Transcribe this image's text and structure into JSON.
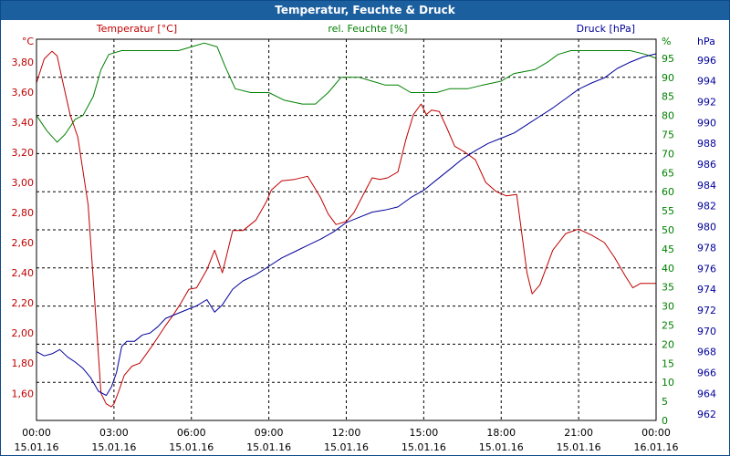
{
  "window": {
    "title": "Temperatur, Feuchte & Druck"
  },
  "chart_data": {
    "type": "line",
    "title": "Temperatur, Feuchte & Druck",
    "grid": true,
    "colors": {
      "temperature": "#c00000",
      "humidity": "#008000",
      "pressure": "#00009a",
      "grid": "#000000",
      "title_bg": "#1c5f9f"
    },
    "x_axis": {
      "range_hours": [
        0,
        24
      ],
      "ticks": [
        {
          "h": 0,
          "time": "00:00",
          "date": "15.01.16"
        },
        {
          "h": 3,
          "time": "03:00",
          "date": "15.01.16"
        },
        {
          "h": 6,
          "time": "06:00",
          "date": "15.01.16"
        },
        {
          "h": 9,
          "time": "09:00",
          "date": "15.01.16"
        },
        {
          "h": 12,
          "time": "12:00",
          "date": "15.01.16"
        },
        {
          "h": 15,
          "time": "15:00",
          "date": "15.01.16"
        },
        {
          "h": 18,
          "time": "18:00",
          "date": "15.01.16"
        },
        {
          "h": 21,
          "time": "21:00",
          "date": "15.01.16"
        },
        {
          "h": 24,
          "time": "00:00",
          "date": "16.01.16"
        }
      ]
    },
    "axes": {
      "temperature": {
        "label": "Temperatur [°C]",
        "unit": "°C",
        "range": [
          1.42,
          3.95
        ],
        "ticks": [
          1.6,
          1.8,
          2.0,
          2.2,
          2.4,
          2.6,
          2.8,
          3.0,
          3.2,
          3.4,
          3.6,
          3.8
        ],
        "tick_labels": [
          "1,60",
          "1,80",
          "2,00",
          "2,20",
          "2,40",
          "2,60",
          "2,80",
          "3,00",
          "3,20",
          "3,40",
          "3,60",
          "3,80"
        ]
      },
      "humidity": {
        "label": "rel. Feuchte [%]",
        "unit": "%",
        "range": [
          0,
          100
        ],
        "ticks": [
          0,
          5,
          10,
          15,
          20,
          25,
          30,
          35,
          40,
          45,
          50,
          55,
          60,
          65,
          70,
          75,
          80,
          85,
          90,
          95
        ],
        "tick_labels": [
          "0",
          "5",
          "10",
          "15",
          "20",
          "25",
          "30",
          "35",
          "40",
          "45",
          "50",
          "55",
          "60",
          "65",
          "70",
          "75",
          "80",
          "85",
          "90",
          "95"
        ]
      },
      "pressure": {
        "label": "Druck [hPa]",
        "unit": "hPa",
        "range": [
          961.4,
          998.0
        ],
        "ticks": [
          962,
          964,
          966,
          968,
          970,
          972,
          974,
          976,
          978,
          980,
          982,
          984,
          986,
          988,
          990,
          992,
          994,
          996
        ],
        "tick_labels": [
          "962",
          "964",
          "966",
          "968",
          "970",
          "972",
          "974",
          "976",
          "978",
          "980",
          "982",
          "984",
          "986",
          "988",
          "990",
          "992",
          "994",
          "996"
        ]
      }
    },
    "series": [
      {
        "name": "Temperatur [°C]",
        "axis": "temperature",
        "x": [
          0,
          0.3,
          0.6,
          0.8,
          1.0,
          1.3,
          1.6,
          2.0,
          2.3,
          2.5,
          2.7,
          2.9,
          3.0,
          3.2,
          3.4,
          3.7,
          4.0,
          4.5,
          5.0,
          5.3,
          5.6,
          5.9,
          6.2,
          6.6,
          6.9,
          7.2,
          7.6,
          8.0,
          8.5,
          8.9,
          9.1,
          9.5,
          10.0,
          10.5,
          11.0,
          11.3,
          11.6,
          12.0,
          12.3,
          12.6,
          13.0,
          13.3,
          13.6,
          14.0,
          14.3,
          14.6,
          14.9,
          15.1,
          15.3,
          15.6,
          15.9,
          16.2,
          16.6,
          17.0,
          17.4,
          17.8,
          18.2,
          18.6,
          19.0,
          19.2,
          19.5,
          20.0,
          20.5,
          21.0,
          21.5,
          22.0,
          22.4,
          22.8,
          23.1,
          23.4,
          23.7,
          24.0
        ],
        "values": [
          3.66,
          3.82,
          3.87,
          3.84,
          3.68,
          3.45,
          3.3,
          2.85,
          2.1,
          1.6,
          1.53,
          1.51,
          1.53,
          1.62,
          1.72,
          1.78,
          1.8,
          1.92,
          2.05,
          2.12,
          2.2,
          2.29,
          2.3,
          2.42,
          2.55,
          2.4,
          2.68,
          2.68,
          2.75,
          2.87,
          2.95,
          3.01,
          3.02,
          3.04,
          2.9,
          2.79,
          2.72,
          2.74,
          2.8,
          2.9,
          3.03,
          3.02,
          3.03,
          3.07,
          3.28,
          3.45,
          3.52,
          3.45,
          3.48,
          3.47,
          3.36,
          3.24,
          3.2,
          3.15,
          3.0,
          2.94,
          2.91,
          2.92,
          2.4,
          2.26,
          2.32,
          2.55,
          2.66,
          2.69,
          2.65,
          2.6,
          2.5,
          2.38,
          2.3,
          2.33,
          2.33,
          2.33
        ]
      },
      {
        "name": "rel. Feuchte [%]",
        "axis": "humidity",
        "x": [
          0,
          0.4,
          0.8,
          1.1,
          1.5,
          1.8,
          2.2,
          2.5,
          2.8,
          3.3,
          4.0,
          4.8,
          5.5,
          6.0,
          6.5,
          7.0,
          7.3,
          7.7,
          8.3,
          9.0,
          9.6,
          10.3,
          10.8,
          11.3,
          11.8,
          12.5,
          13.0,
          13.5,
          14.0,
          14.5,
          15.0,
          15.5,
          16.0,
          16.7,
          17.3,
          18.0,
          18.5,
          19.3,
          19.8,
          20.2,
          20.7,
          21.2,
          22.0,
          23.0,
          23.6,
          24.0
        ],
        "values": [
          80,
          76,
          73,
          75,
          79,
          80,
          85,
          92,
          96,
          97,
          97,
          97,
          97,
          98,
          99,
          98,
          93,
          87,
          86,
          86,
          84,
          83,
          83,
          86,
          90,
          90,
          89,
          88,
          88,
          86,
          86,
          86,
          87,
          87,
          88,
          89,
          91,
          92,
          94,
          96,
          97,
          97,
          97,
          97,
          96,
          95
        ]
      },
      {
        "name": "Druck [hPa]",
        "axis": "pressure",
        "x": [
          0,
          0.3,
          0.6,
          0.9,
          1.2,
          1.5,
          1.8,
          2.1,
          2.4,
          2.7,
          2.9,
          3.1,
          3.3,
          3.5,
          3.8,
          4.1,
          4.4,
          4.7,
          5.0,
          5.4,
          5.8,
          6.2,
          6.6,
          6.9,
          7.2,
          7.6,
          8.0,
          8.5,
          9.0,
          9.5,
          10.0,
          10.5,
          11.0,
          11.5,
          12.0,
          12.5,
          13.0,
          13.5,
          14.0,
          14.5,
          15.0,
          15.5,
          16.0,
          16.5,
          17.0,
          17.5,
          18.0,
          18.5,
          19.0,
          19.5,
          20.0,
          20.5,
          21.0,
          21.5,
          22.0,
          22.5,
          23.0,
          23.5,
          24.0
        ],
        "values": [
          968.0,
          967.6,
          967.8,
          968.2,
          967.5,
          967.0,
          966.4,
          965.5,
          964.2,
          963.8,
          964.6,
          966.0,
          968.5,
          969.0,
          969.0,
          969.6,
          969.8,
          970.4,
          971.2,
          971.6,
          972.0,
          972.4,
          973.0,
          971.8,
          972.5,
          974.0,
          974.8,
          975.4,
          976.2,
          977.0,
          977.6,
          978.2,
          978.8,
          979.5,
          980.4,
          980.9,
          981.4,
          981.6,
          981.9,
          982.8,
          983.5,
          984.5,
          985.5,
          986.5,
          987.3,
          988.0,
          988.5,
          989.0,
          989.8,
          990.6,
          991.4,
          992.3,
          993.2,
          993.8,
          994.3,
          995.2,
          995.8,
          996.3,
          996.6
        ]
      }
    ]
  }
}
